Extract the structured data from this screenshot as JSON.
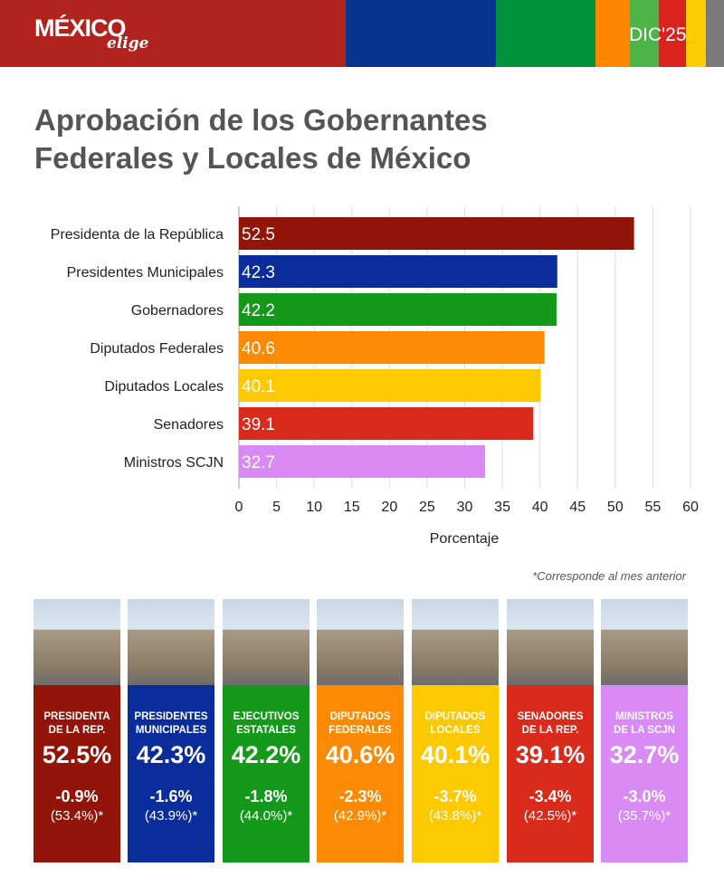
{
  "header": {
    "logo_main": "MÉXICO",
    "logo_sub": "elige",
    "period": "DIC'25",
    "stripe_colors": [
      "#b2231e",
      "#073491",
      "#02913c",
      "#ff8600",
      "#4db448",
      "#d8231f",
      "#ffcc00",
      "#7a7a7a"
    ]
  },
  "title_line1": "Aprobación de los Gobernantes",
  "title_line2": "Federales y Locales de México",
  "chart_data": {
    "type": "bar",
    "orientation": "horizontal",
    "categories": [
      "Presidenta de la República",
      "Presidentes Municipales",
      "Gobernadores",
      "Diputados Federales",
      "Diputados Locales",
      "Senadores",
      "Ministros SCJN"
    ],
    "values": [
      52.5,
      42.3,
      42.2,
      40.6,
      40.1,
      39.1,
      32.7
    ],
    "colors": [
      "#931408",
      "#0b2d9c",
      "#14991b",
      "#fc8a02",
      "#fdc900",
      "#d92a1c",
      "#d98af5"
    ],
    "xlabel": "Porcentaje",
    "xlim": [
      0,
      60
    ],
    "xticks": [
      0,
      5,
      10,
      15,
      20,
      25,
      30,
      35,
      40,
      45,
      50,
      55,
      60
    ],
    "grid": true,
    "data_labels": true
  },
  "footnote": "*Corresponde al mes anterior",
  "cards": [
    {
      "label1": "PRESIDENTA",
      "label2": "DE LA REP.",
      "value": "52.5%",
      "change": "-0.9%",
      "previous": "(53.4%)*",
      "color": "#931408"
    },
    {
      "label1": "PRESIDENTES",
      "label2": "MUNICIPALES",
      "value": "42.3%",
      "change": "-1.6%",
      "previous": "(43.9%)*",
      "color": "#0b2d9c"
    },
    {
      "label1": "EJECUTIVOS",
      "label2": "ESTATALES",
      "value": "42.2%",
      "change": "-1.8%",
      "previous": "(44.0%)*",
      "color": "#14991b"
    },
    {
      "label1": "DIPUTADOS",
      "label2": "FEDERALES",
      "value": "40.6%",
      "change": "-2.3%",
      "previous": "(42.9%)*",
      "color": "#fc8a02"
    },
    {
      "label1": "DIPUTADOS",
      "label2": "LOCALES",
      "value": "40.1%",
      "change": "-3.7%",
      "previous": "(43.8%)*",
      "color": "#fdc900"
    },
    {
      "label1": "SENADORES",
      "label2": "DE LA REP.",
      "value": "39.1%",
      "change": "-3.4%",
      "previous": "(42.5%)*",
      "color": "#d92a1c"
    },
    {
      "label1": "MINISTROS",
      "label2": "DE LA SCJN",
      "value": "32.7%",
      "change": "-3.0%",
      "previous": "(35.7%)*",
      "color": "#d98af5"
    }
  ]
}
